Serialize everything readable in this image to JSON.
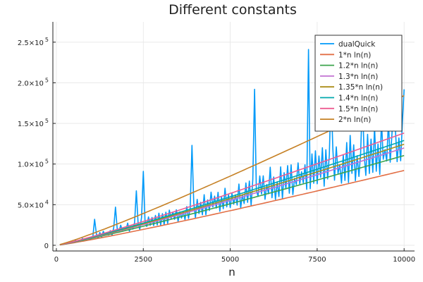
{
  "chart_data": {
    "type": "line",
    "title": "Different constants",
    "xlabel": "n",
    "ylabel": "",
    "xlim": [
      -100,
      10300
    ],
    "ylim": [
      -7000,
      275000
    ],
    "grid": true,
    "legend_position": "top-right",
    "xticks": [
      {
        "value": 0,
        "label": "0"
      },
      {
        "value": 2500,
        "label": "2500"
      },
      {
        "value": 5000,
        "label": "5000"
      },
      {
        "value": 7500,
        "label": "7500"
      },
      {
        "value": 10000,
        "label": "10000"
      }
    ],
    "yticks": [
      {
        "value": 0,
        "label": "0",
        "mantissa": "0",
        "exponent": ""
      },
      {
        "value": 50000,
        "label": "5.0×10 4",
        "mantissa": "5.0×10",
        "exponent": "4"
      },
      {
        "value": 100000,
        "label": "1.0×10 5",
        "mantissa": "1.0×10",
        "exponent": "5"
      },
      {
        "value": 150000,
        "label": "1.5×10 5",
        "mantissa": "1.5×10",
        "exponent": "5"
      },
      {
        "value": 200000,
        "label": "2.0×10 5",
        "mantissa": "2.0×10",
        "exponent": "5"
      },
      {
        "value": 250000,
        "label": "2.5×10 5",
        "mantissa": "2.5×10",
        "exponent": "5"
      }
    ],
    "dualQuick": {
      "name": "dualQuick",
      "color": "#009af9",
      "n_start": 100,
      "n_step": 50,
      "n_end": 10000,
      "low_constant": 1.0,
      "mid_constant": 1.3,
      "peak_points": [
        {
          "x": 1100,
          "y": 32000
        },
        {
          "x": 1700,
          "y": 47000
        },
        {
          "x": 2300,
          "y": 67000
        },
        {
          "x": 2500,
          "y": 91000
        },
        {
          "x": 3900,
          "y": 123000
        },
        {
          "x": 5700,
          "y": 192000
        },
        {
          "x": 7250,
          "y": 241000
        },
        {
          "x": 7900,
          "y": 189000
        },
        {
          "x": 8800,
          "y": 180000
        },
        {
          "x": 9700,
          "y": 172000
        },
        {
          "x": 10000,
          "y": 192000
        }
      ]
    },
    "series": [
      {
        "name": "dualQuick",
        "color": "#009af9"
      },
      {
        "name": "1*n ln(n)",
        "constant": 1.0,
        "color": "#e26f46"
      },
      {
        "name": "1.2*n ln(n)",
        "constant": 1.2,
        "color": "#3da44d"
      },
      {
        "name": "1.3*n ln(n)",
        "constant": 1.3,
        "color": "#c271d2"
      },
      {
        "name": "1.35*n ln(n)",
        "constant": 1.35,
        "color": "#ac8e18"
      },
      {
        "name": "1.4*n ln(n)",
        "constant": 1.4,
        "color": "#00a9ad"
      },
      {
        "name": "1.5*n ln(n)",
        "constant": 1.5,
        "color": "#ed5d92"
      },
      {
        "name": "2*n ln(n)",
        "constant": 2.0,
        "color": "#c68125"
      }
    ]
  }
}
